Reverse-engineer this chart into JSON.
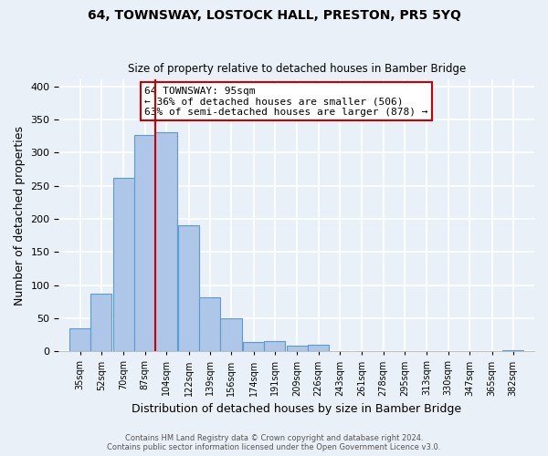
{
  "title": "64, TOWNSWAY, LOSTOCK HALL, PRESTON, PR5 5YQ",
  "subtitle": "Size of property relative to detached houses in Bamber Bridge",
  "xlabel": "Distribution of detached houses by size in Bamber Bridge",
  "ylabel": "Number of detached properties",
  "bar_labels": [
    "35sqm",
    "52sqm",
    "70sqm",
    "87sqm",
    "104sqm",
    "122sqm",
    "139sqm",
    "156sqm",
    "174sqm",
    "191sqm",
    "209sqm",
    "226sqm",
    "243sqm",
    "261sqm",
    "278sqm",
    "295sqm",
    "313sqm",
    "330sqm",
    "347sqm",
    "365sqm",
    "382sqm"
  ],
  "bar_values": [
    35,
    87,
    262,
    327,
    330,
    190,
    82,
    50,
    14,
    15,
    8,
    10,
    1,
    0,
    0,
    0,
    0,
    0,
    0,
    0,
    2
  ],
  "bar_color": "#aec6e8",
  "bar_edgecolor": "#5b9bd5",
  "property_line_color": "#cc0000",
  "annotation_text": "64 TOWNSWAY: 95sqm\n← 36% of detached houses are smaller (506)\n63% of semi-detached houses are larger (878) →",
  "annotation_box_color": "#ffffff",
  "annotation_box_edgecolor": "#cc0000",
  "ylim": [
    0,
    410
  ],
  "yticks": [
    0,
    50,
    100,
    150,
    200,
    250,
    300,
    350,
    400
  ],
  "footer": "Contains HM Land Registry data © Crown copyright and database right 2024.\nContains public sector information licensed under the Open Government Licence v3.0.",
  "bg_color": "#eaf0f8",
  "plot_bg_color": "#eaf0f8",
  "grid_color": "#ffffff",
  "bin_width": 17
}
